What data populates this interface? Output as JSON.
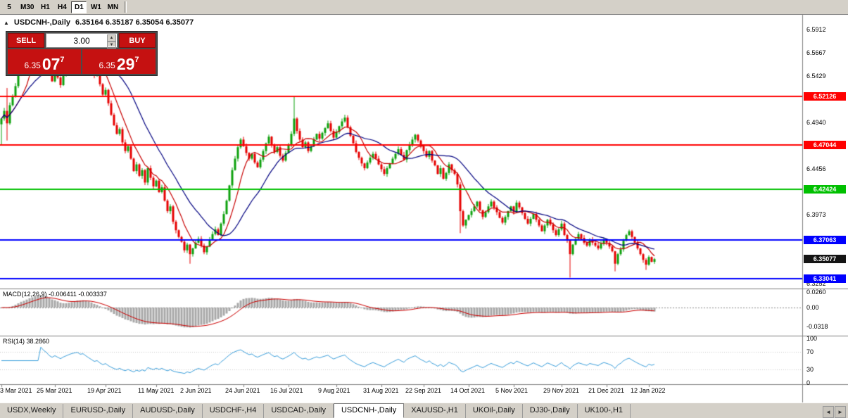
{
  "toolbar": {
    "timeframes": [
      {
        "label": "5",
        "active": false
      },
      {
        "label": "M30",
        "active": false
      },
      {
        "label": "H1",
        "active": false
      },
      {
        "label": "H4",
        "active": false
      },
      {
        "label": "D1",
        "active": true
      },
      {
        "label": "W1",
        "active": false
      },
      {
        "label": "MN",
        "active": false
      }
    ]
  },
  "chart_header": {
    "symbol_title": "USDCNH-,Daily",
    "ohlc": [
      "6.35164",
      "6.35187",
      "6.35054",
      "6.35077"
    ]
  },
  "trade_panel": {
    "sell_label": "SELL",
    "buy_label": "BUY",
    "volume": "3.00",
    "sell_price": {
      "big": "6.35",
      "large": "07",
      "sup": "7"
    },
    "buy_price": {
      "big": "6.35",
      "large": "29",
      "sup": "7"
    }
  },
  "price_axis": {
    "plain_labels": [
      {
        "text": "6.5912",
        "value": 6.5912
      },
      {
        "text": "6.5667",
        "value": 6.5667
      },
      {
        "text": "6.5429",
        "value": 6.5429
      },
      {
        "text": "6.5191",
        "value": 6.5191
      },
      {
        "text": "6.4940",
        "value": 6.494
      },
      {
        "text": "6.4456",
        "value": 6.4456
      },
      {
        "text": "6.3973",
        "value": 6.3973
      },
      {
        "text": "6.3252",
        "value": 6.3252
      }
    ],
    "badges": [
      {
        "text": "6.52126",
        "value": 6.52126,
        "color": "#ff0000",
        "line": true,
        "current": false
      },
      {
        "text": "6.47044",
        "value": 6.47044,
        "color": "#ff0000",
        "line": true,
        "current": false
      },
      {
        "text": "6.42424",
        "value": 6.42424,
        "color": "#00c000",
        "line": true,
        "current": false
      },
      {
        "text": "6.37063",
        "value": 6.37063,
        "color": "#0000ff",
        "line": true,
        "current": false
      },
      {
        "text": "6.35077",
        "value": 6.35077,
        "color": "#141414",
        "line": false,
        "current": true
      },
      {
        "text": "6.33041",
        "value": 6.33041,
        "color": "#0000ff",
        "line": true,
        "current": false
      }
    ]
  },
  "macd_panel": {
    "name": "MACD(12,26,9)",
    "main_value": "-0.006411",
    "signal_value": "-0.003337",
    "scale": [
      {
        "text": "0.0260",
        "value": 0.026
      },
      {
        "text": "0.00",
        "value": 0
      },
      {
        "text": "-0.0318",
        "value": -0.0318
      }
    ]
  },
  "rsi_panel": {
    "name": "RSI(14)",
    "value": "38.2860",
    "scale": [
      {
        "text": "100",
        "value": 100
      },
      {
        "text": "70",
        "value": 70
      },
      {
        "text": "30",
        "value": 30
      },
      {
        "text": "0",
        "value": 0
      }
    ]
  },
  "date_axis": [
    {
      "label": "3 Mar 2021",
      "index": 0
    },
    {
      "label": "25 Mar 2021",
      "index": 19
    },
    {
      "label": "19 Apr 2021",
      "index": 37
    },
    {
      "label": "11 May 2021",
      "index": 55
    },
    {
      "label": "2 Jun 2021",
      "index": 70
    },
    {
      "label": "24 Jun 2021",
      "index": 86
    },
    {
      "label": "16 Jul 2021",
      "index": 102
    },
    {
      "label": "9 Aug 2021",
      "index": 119
    },
    {
      "label": "31 Aug 2021",
      "index": 135
    },
    {
      "label": "22 Sep 2021",
      "index": 150
    },
    {
      "label": "14 Oct 2021",
      "index": 166
    },
    {
      "label": "5 Nov 2021",
      "index": 182
    },
    {
      "label": "29 Nov 2021",
      "index": 199
    },
    {
      "label": "21 Dec 2021",
      "index": 215
    },
    {
      "label": "12 Jan 2022",
      "index": 230
    }
  ],
  "tabs": [
    {
      "label": "USDX,Weekly",
      "active": false
    },
    {
      "label": "EURUSD-,Daily",
      "active": false
    },
    {
      "label": "AUDUSD-,Daily",
      "active": false
    },
    {
      "label": "USDCHF-,H4",
      "active": false
    },
    {
      "label": "USDCAD-,Daily",
      "active": false
    },
    {
      "label": "USDCNH-,Daily",
      "active": true
    },
    {
      "label": "XAUUSD-,H1",
      "active": false
    },
    {
      "label": "UKOil-,Daily",
      "active": false
    },
    {
      "label": "DJ30-,Daily",
      "active": false
    },
    {
      "label": "UK100-,H1",
      "active": false
    }
  ],
  "chart_data": {
    "type": "candlestick",
    "symbol": "USDCNH-",
    "timeframe": "Daily",
    "ohlc_current": {
      "open": 6.35164,
      "high": 6.35187,
      "low": 6.35054,
      "close": 6.35077
    },
    "ylim": [
      6.32,
      6.6067
    ],
    "open_first": 6.492,
    "up_color": "#0da10d",
    "down_color": "#e60000",
    "closes": [
      6.498,
      6.506,
      6.493,
      6.512,
      6.521,
      6.532,
      6.544,
      6.553,
      6.548,
      6.561,
      6.572,
      6.568,
      6.579,
      6.574,
      6.583,
      6.57,
      6.561,
      6.546,
      6.537,
      6.549,
      6.541,
      6.533,
      6.545,
      6.554,
      6.564,
      6.573,
      6.579,
      6.584,
      6.576,
      6.58,
      6.571,
      6.562,
      6.553,
      6.543,
      6.547,
      6.534,
      6.523,
      6.528,
      6.514,
      6.502,
      6.491,
      6.482,
      6.487,
      6.473,
      6.464,
      6.469,
      6.456,
      6.443,
      6.45,
      6.438,
      6.444,
      6.431,
      6.446,
      6.436,
      6.427,
      6.433,
      6.421,
      6.426,
      6.412,
      6.401,
      6.406,
      6.39,
      6.381,
      6.374,
      6.369,
      6.36,
      6.366,
      6.356,
      6.362,
      6.368,
      6.372,
      6.365,
      6.358,
      6.364,
      6.371,
      6.377,
      6.382,
      6.376,
      6.388,
      6.398,
      6.412,
      6.428,
      6.444,
      6.456,
      6.468,
      6.476,
      6.469,
      6.462,
      6.456,
      6.461,
      6.452,
      6.447,
      6.455,
      6.464,
      6.472,
      6.479,
      6.47,
      6.463,
      6.468,
      6.459,
      6.454,
      6.462,
      6.471,
      6.482,
      6.498,
      6.485,
      6.476,
      6.468,
      6.473,
      6.464,
      6.469,
      6.476,
      6.482,
      6.477,
      6.483,
      6.488,
      6.493,
      6.485,
      6.478,
      6.484,
      6.49,
      6.495,
      6.499,
      6.489,
      6.48,
      6.472,
      6.463,
      6.457,
      6.451,
      6.446,
      6.452,
      6.457,
      6.461,
      6.456,
      6.45,
      6.445,
      6.44,
      6.446,
      6.451,
      6.456,
      6.461,
      6.466,
      6.46,
      6.455,
      6.465,
      6.471,
      6.476,
      6.481,
      6.475,
      6.469,
      6.464,
      6.458,
      6.464,
      6.454,
      6.449,
      6.44,
      6.446,
      6.435,
      6.441,
      6.45,
      6.444,
      6.44,
      6.429,
      6.401,
      6.386,
      6.392,
      6.397,
      6.401,
      6.406,
      6.411,
      6.402,
      6.395,
      6.4,
      6.406,
      6.411,
      6.405,
      6.4,
      6.394,
      6.389,
      6.395,
      6.401,
      6.406,
      6.4,
      6.41,
      6.405,
      6.399,
      6.393,
      6.388,
      6.393,
      6.398,
      6.392,
      6.386,
      6.38,
      6.386,
      6.392,
      6.387,
      6.381,
      6.376,
      6.382,
      6.388,
      6.376,
      6.37,
      6.356,
      6.366,
      6.372,
      6.377,
      6.373,
      6.368,
      6.365,
      6.371,
      6.368,
      6.365,
      6.362,
      6.367,
      6.371,
      6.368,
      6.364,
      6.359,
      6.346,
      6.356,
      6.361,
      6.37,
      6.376,
      6.38,
      6.374,
      6.368,
      6.362,
      6.356,
      6.35,
      6.345,
      6.353,
      6.348,
      6.3508
    ],
    "wick_overrides": {
      "0": {
        "low": 6.47
      },
      "2": {
        "low": 6.475,
        "high": 6.53
      },
      "14": {
        "high": 6.588
      },
      "27": {
        "high": 6.5875
      },
      "67": {
        "low": 6.346
      },
      "104": {
        "high": 6.5212
      },
      "122": {
        "high": 6.502
      },
      "163": {
        "low": 6.378
      },
      "202": {
        "low": 6.3315
      },
      "218": {
        "low": 6.338
      },
      "229": {
        "low": 6.3395
      }
    },
    "moving_averages": [
      {
        "type": "sma",
        "period": 8,
        "color": "#c80000"
      },
      {
        "type": "sma",
        "period": 21,
        "color": "#000080"
      }
    ],
    "macd": {
      "fast": 12,
      "slow": 26,
      "signal": 9,
      "ylim": [
        -0.047,
        0.031
      ],
      "hist_color": "#a8a8a8",
      "signal_color": "#cc0000"
    },
    "rsi": {
      "period": 14,
      "levels": [
        30,
        70
      ],
      "color": "#3da0dc"
    },
    "support_resistance_lines": [
      6.52126,
      6.47044,
      6.42424,
      6.37063,
      6.33041
    ]
  }
}
